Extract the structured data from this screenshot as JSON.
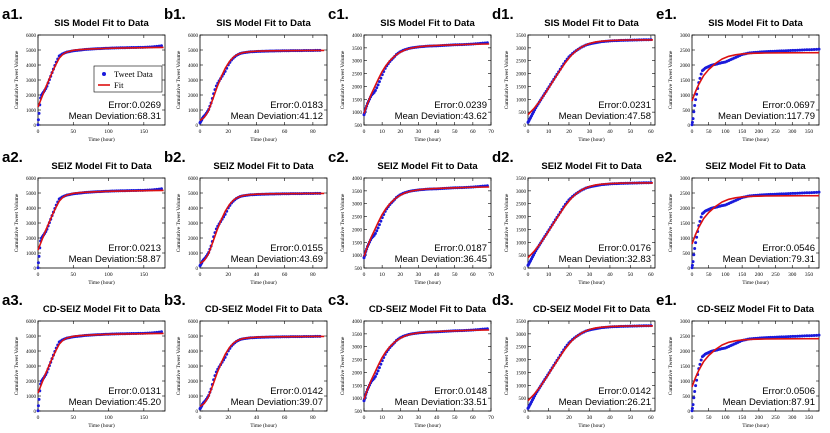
{
  "colors": {
    "data": "#1a1adb",
    "fit": "#dd1111",
    "axis": "#000000",
    "panel_bg": "#ffffff"
  },
  "legend": {
    "data_label": "Tweet Data",
    "fit_label": "Fit"
  },
  "axis_labels": {
    "x": "Time (hour)",
    "y": "Cumulative Tweet Volume"
  },
  "error_prefix": "Error:",
  "deviation_prefix": "Mean Deviation:",
  "chart_data": [
    {
      "type": "line",
      "panel": "a1.",
      "title": "SIS Model Fit to Data",
      "xlim": [
        0,
        180
      ],
      "ylim": [
        0,
        6000
      ],
      "xticks": [
        0,
        50,
        100,
        150
      ],
      "yticks": [
        0,
        1000,
        2000,
        3000,
        4000,
        5000,
        6000
      ],
      "error": "0.0269",
      "deviation": "68.31",
      "curve": "a",
      "legend": true
    },
    {
      "type": "line",
      "panel": "b1.",
      "title": "SIS Model Fit to Data",
      "xlim": [
        0,
        90
      ],
      "ylim": [
        0,
        6000
      ],
      "xticks": [
        0,
        20,
        40,
        60,
        80
      ],
      "yticks": [
        0,
        1000,
        2000,
        3000,
        4000,
        5000,
        6000
      ],
      "error": "0.0183",
      "deviation": "41.12",
      "curve": "b"
    },
    {
      "type": "line",
      "panel": "c1.",
      "title": "SIS Model Fit to Data",
      "xlim": [
        0,
        70
      ],
      "ylim": [
        500,
        4000
      ],
      "xticks": [
        0,
        10,
        20,
        30,
        40,
        50,
        60,
        70
      ],
      "yticks": [
        500,
        1000,
        1500,
        2000,
        2500,
        3000,
        3500,
        4000
      ],
      "error": "0.0239",
      "deviation": "43.62",
      "curve": "c"
    },
    {
      "type": "line",
      "panel": "d1.",
      "title": "SIS Model Fit to Data",
      "xlim": [
        0,
        62
      ],
      "ylim": [
        0,
        3500
      ],
      "xticks": [
        0,
        10,
        20,
        30,
        40,
        50,
        60
      ],
      "yticks": [
        0,
        500,
        1000,
        1500,
        2000,
        2500,
        3000,
        3500
      ],
      "error": "0.0231",
      "deviation": "47.58",
      "curve": "d"
    },
    {
      "type": "line",
      "panel": "e1.",
      "title": "SIS Model Fit to Data",
      "xlim": [
        0,
        380
      ],
      "ylim": [
        0,
        3000
      ],
      "xticks": [
        0,
        50,
        100,
        150,
        200,
        250,
        300,
        350
      ],
      "yticks": [
        0,
        500,
        1000,
        1500,
        2000,
        2500,
        3000
      ],
      "error": "0.0697",
      "deviation": "117.79",
      "curve": "e"
    },
    {
      "type": "line",
      "panel": "a2.",
      "title": "SEIZ Model Fit to Data",
      "xlim": [
        0,
        180
      ],
      "ylim": [
        0,
        6000
      ],
      "xticks": [
        0,
        50,
        100,
        150
      ],
      "yticks": [
        0,
        1000,
        2000,
        3000,
        4000,
        5000,
        6000
      ],
      "error": "0.0213",
      "deviation": "58.87",
      "curve": "a"
    },
    {
      "type": "line",
      "panel": "b2.",
      "title": "SEIZ Model Fit to Data",
      "xlim": [
        0,
        90
      ],
      "ylim": [
        0,
        6000
      ],
      "xticks": [
        0,
        20,
        40,
        60,
        80
      ],
      "yticks": [
        0,
        1000,
        2000,
        3000,
        4000,
        5000,
        6000
      ],
      "error": "0.0155",
      "deviation": "43.69",
      "curve": "b"
    },
    {
      "type": "line",
      "panel": "c2.",
      "title": "SEIZ Model Fit to Data",
      "xlim": [
        0,
        70
      ],
      "ylim": [
        500,
        4000
      ],
      "xticks": [
        0,
        10,
        20,
        30,
        40,
        50,
        60,
        70
      ],
      "yticks": [
        500,
        1000,
        1500,
        2000,
        2500,
        3000,
        3500,
        4000
      ],
      "error": "0.0187",
      "deviation": "36.45",
      "curve": "c"
    },
    {
      "type": "line",
      "panel": "d2.",
      "title": "SEIZ Model Fit to Data",
      "xlim": [
        0,
        62
      ],
      "ylim": [
        0,
        3500
      ],
      "xticks": [
        0,
        10,
        20,
        30,
        40,
        50,
        60
      ],
      "yticks": [
        0,
        500,
        1000,
        1500,
        2000,
        2500,
        3000,
        3500
      ],
      "error": "0.0176",
      "deviation": "32.83",
      "curve": "d"
    },
    {
      "type": "line",
      "panel": "e2.",
      "title": "SEIZ Model Fit to Data",
      "xlim": [
        0,
        380
      ],
      "ylim": [
        0,
        3000
      ],
      "xticks": [
        0,
        50,
        100,
        150,
        200,
        250,
        300,
        350
      ],
      "yticks": [
        0,
        500,
        1000,
        1500,
        2000,
        2500,
        3000
      ],
      "error": "0.0546",
      "deviation": "79.31",
      "curve": "e"
    },
    {
      "type": "line",
      "panel": "a3.",
      "title": "CD-SEIZ Model Fit to Data",
      "xlim": [
        0,
        180
      ],
      "ylim": [
        0,
        6000
      ],
      "xticks": [
        0,
        50,
        100,
        150
      ],
      "yticks": [
        0,
        1000,
        2000,
        3000,
        4000,
        5000,
        6000
      ],
      "error": "0.0131",
      "deviation": "45.20",
      "curve": "a"
    },
    {
      "type": "line",
      "panel": "b3.",
      "title": "CD-SEIZ Model Fit to Data",
      "xlim": [
        0,
        90
      ],
      "ylim": [
        0,
        6000
      ],
      "xticks": [
        0,
        20,
        40,
        60,
        80
      ],
      "yticks": [
        0,
        1000,
        2000,
        3000,
        4000,
        5000,
        6000
      ],
      "error": "0.0142",
      "deviation": "39.07",
      "curve": "b"
    },
    {
      "type": "line",
      "panel": "c3.",
      "title": "CD-SEIZ Model Fit to Data",
      "xlim": [
        0,
        70
      ],
      "ylim": [
        500,
        4000
      ],
      "xticks": [
        0,
        10,
        20,
        30,
        40,
        50,
        60,
        70
      ],
      "yticks": [
        500,
        1000,
        1500,
        2000,
        2500,
        3000,
        3500,
        4000
      ],
      "error": "0.0148",
      "deviation": "33.51",
      "curve": "c"
    },
    {
      "type": "line",
      "panel": "d3.",
      "title": "CD-SEIZ Model Fit to Data",
      "xlim": [
        0,
        62
      ],
      "ylim": [
        0,
        3500
      ],
      "xticks": [
        0,
        10,
        20,
        30,
        40,
        50,
        60
      ],
      "yticks": [
        0,
        500,
        1000,
        1500,
        2000,
        2500,
        3000,
        3500
      ],
      "error": "0.0142",
      "deviation": "26.21",
      "curve": "d"
    },
    {
      "type": "line",
      "panel": "e1.",
      "title": "CD-SEIZ Model Fit to Data",
      "xlim": [
        0,
        380
      ],
      "ylim": [
        0,
        3000
      ],
      "xticks": [
        0,
        50,
        100,
        150,
        200,
        250,
        300,
        350
      ],
      "yticks": [
        0,
        500,
        1000,
        1500,
        2000,
        2500,
        3000
      ],
      "error": "0.0506",
      "deviation": "87.91",
      "curve": "e"
    }
  ],
  "curves": {
    "a": {
      "data": [
        [
          0,
          20
        ],
        [
          1,
          600
        ],
        [
          2,
          1000
        ],
        [
          3,
          1700
        ],
        [
          5,
          2000
        ],
        [
          8,
          2200
        ],
        [
          12,
          2500
        ],
        [
          16,
          3000
        ],
        [
          20,
          3500
        ],
        [
          25,
          4100
        ],
        [
          30,
          4600
        ],
        [
          35,
          4750
        ],
        [
          40,
          4850
        ],
        [
          50,
          4950
        ],
        [
          60,
          5000
        ],
        [
          70,
          5050
        ],
        [
          80,
          5080
        ],
        [
          90,
          5100
        ],
        [
          100,
          5120
        ],
        [
          110,
          5140
        ],
        [
          120,
          5150
        ],
        [
          130,
          5160
        ],
        [
          140,
          5170
        ],
        [
          150,
          5180
        ],
        [
          160,
          5200
        ],
        [
          170,
          5250
        ],
        [
          175,
          5280
        ]
      ],
      "fit": [
        [
          0,
          1200
        ],
        [
          5,
          1800
        ],
        [
          10,
          2400
        ],
        [
          15,
          2950
        ],
        [
          20,
          3500
        ],
        [
          25,
          4000
        ],
        [
          30,
          4450
        ],
        [
          35,
          4700
        ],
        [
          40,
          4850
        ],
        [
          50,
          4980
        ],
        [
          60,
          5030
        ],
        [
          80,
          5080
        ],
        [
          100,
          5110
        ],
        [
          130,
          5140
        ],
        [
          160,
          5160
        ],
        [
          178,
          5170
        ]
      ]
    },
    "b": {
      "data": [
        [
          0,
          150
        ],
        [
          1,
          300
        ],
        [
          2,
          500
        ],
        [
          4,
          700
        ],
        [
          6,
          1000
        ],
        [
          8,
          1500
        ],
        [
          10,
          2200
        ],
        [
          12,
          2700
        ],
        [
          14,
          3000
        ],
        [
          16,
          3300
        ],
        [
          18,
          3600
        ],
        [
          20,
          4000
        ],
        [
          22,
          4300
        ],
        [
          24,
          4500
        ],
        [
          26,
          4650
        ],
        [
          28,
          4750
        ],
        [
          30,
          4800
        ],
        [
          33,
          4850
        ],
        [
          36,
          4880
        ],
        [
          40,
          4900
        ],
        [
          45,
          4920
        ],
        [
          50,
          4930
        ],
        [
          55,
          4940
        ],
        [
          60,
          4950
        ],
        [
          65,
          4955
        ],
        [
          70,
          4960
        ],
        [
          75,
          4965
        ],
        [
          80,
          4970
        ],
        [
          85,
          4975
        ]
      ],
      "fit": [
        [
          0,
          300
        ],
        [
          3,
          500
        ],
        [
          6,
          950
        ],
        [
          9,
          1700
        ],
        [
          12,
          2500
        ],
        [
          15,
          3200
        ],
        [
          18,
          3800
        ],
        [
          21,
          4250
        ],
        [
          24,
          4550
        ],
        [
          27,
          4720
        ],
        [
          30,
          4820
        ],
        [
          35,
          4890
        ],
        [
          40,
          4920
        ],
        [
          50,
          4945
        ],
        [
          60,
          4955
        ],
        [
          70,
          4962
        ],
        [
          80,
          4968
        ],
        [
          88,
          4972
        ]
      ]
    },
    "c": {
      "data": [
        [
          0,
          900
        ],
        [
          1,
          1150
        ],
        [
          2,
          1350
        ],
        [
          3,
          1500
        ],
        [
          4,
          1650
        ],
        [
          6,
          1800
        ],
        [
          8,
          2100
        ],
        [
          10,
          2450
        ],
        [
          12,
          2750
        ],
        [
          14,
          2950
        ],
        [
          16,
          3100
        ],
        [
          18,
          3250
        ],
        [
          20,
          3350
        ],
        [
          22,
          3420
        ],
        [
          25,
          3480
        ],
        [
          28,
          3520
        ],
        [
          32,
          3550
        ],
        [
          36,
          3570
        ],
        [
          40,
          3580
        ],
        [
          45,
          3600
        ],
        [
          50,
          3620
        ],
        [
          55,
          3630
        ],
        [
          60,
          3650
        ],
        [
          65,
          3680
        ],
        [
          68,
          3700
        ]
      ],
      "fit": [
        [
          0,
          950
        ],
        [
          2,
          1350
        ],
        [
          4,
          1700
        ],
        [
          6,
          2000
        ],
        [
          8,
          2300
        ],
        [
          10,
          2580
        ],
        [
          12,
          2800
        ],
        [
          14,
          2980
        ],
        [
          16,
          3120
        ],
        [
          18,
          3240
        ],
        [
          20,
          3330
        ],
        [
          23,
          3430
        ],
        [
          26,
          3490
        ],
        [
          30,
          3540
        ],
        [
          35,
          3575
        ],
        [
          40,
          3595
        ],
        [
          50,
          3620
        ],
        [
          60,
          3640
        ],
        [
          69,
          3650
        ]
      ]
    },
    "d": {
      "data": [
        [
          0,
          100
        ],
        [
          1,
          250
        ],
        [
          2,
          400
        ],
        [
          3,
          550
        ],
        [
          4,
          700
        ],
        [
          6,
          950
        ],
        [
          8,
          1200
        ],
        [
          10,
          1450
        ],
        [
          12,
          1700
        ],
        [
          14,
          1950
        ],
        [
          16,
          2200
        ],
        [
          18,
          2450
        ],
        [
          20,
          2650
        ],
        [
          22,
          2800
        ],
        [
          24,
          2920
        ],
        [
          26,
          3020
        ],
        [
          28,
          3100
        ],
        [
          30,
          3150
        ],
        [
          33,
          3200
        ],
        [
          36,
          3240
        ],
        [
          40,
          3270
        ],
        [
          45,
          3290
        ],
        [
          50,
          3300
        ],
        [
          55,
          3310
        ],
        [
          60,
          3320
        ]
      ],
      "fit": [
        [
          0,
          400
        ],
        [
          3,
          650
        ],
        [
          6,
          950
        ],
        [
          9,
          1300
        ],
        [
          12,
          1680
        ],
        [
          15,
          2050
        ],
        [
          18,
          2400
        ],
        [
          21,
          2700
        ],
        [
          24,
          2920
        ],
        [
          27,
          3070
        ],
        [
          30,
          3170
        ],
        [
          33,
          3230
        ],
        [
          36,
          3260
        ],
        [
          40,
          3285
        ],
        [
          45,
          3300
        ],
        [
          50,
          3305
        ],
        [
          55,
          3308
        ],
        [
          61,
          3310
        ]
      ]
    },
    "e": {
      "data": [
        [
          0,
          10
        ],
        [
          3,
          200
        ],
        [
          6,
          500
        ],
        [
          10,
          800
        ],
        [
          15,
          1100
        ],
        [
          20,
          1400
        ],
        [
          30,
          1800
        ],
        [
          40,
          1900
        ],
        [
          50,
          1950
        ],
        [
          60,
          2000
        ],
        [
          70,
          2020
        ],
        [
          80,
          2050
        ],
        [
          90,
          2080
        ],
        [
          100,
          2100
        ],
        [
          110,
          2150
        ],
        [
          120,
          2200
        ],
        [
          130,
          2250
        ],
        [
          140,
          2300
        ],
        [
          150,
          2350
        ],
        [
          170,
          2400
        ],
        [
          190,
          2420
        ],
        [
          210,
          2440
        ],
        [
          230,
          2450
        ],
        [
          250,
          2460
        ],
        [
          270,
          2470
        ],
        [
          290,
          2480
        ],
        [
          310,
          2490
        ],
        [
          330,
          2500
        ],
        [
          350,
          2510
        ],
        [
          370,
          2520
        ],
        [
          380,
          2530
        ]
      ],
      "fit": [
        [
          0,
          800
        ],
        [
          10,
          1100
        ],
        [
          20,
          1350
        ],
        [
          35,
          1650
        ],
        [
          50,
          1850
        ],
        [
          70,
          2050
        ],
        [
          90,
          2200
        ],
        [
          110,
          2290
        ],
        [
          130,
          2340
        ],
        [
          150,
          2370
        ],
        [
          180,
          2390
        ],
        [
          220,
          2400
        ],
        [
          280,
          2405
        ],
        [
          340,
          2408
        ],
        [
          380,
          2410
        ]
      ]
    }
  }
}
